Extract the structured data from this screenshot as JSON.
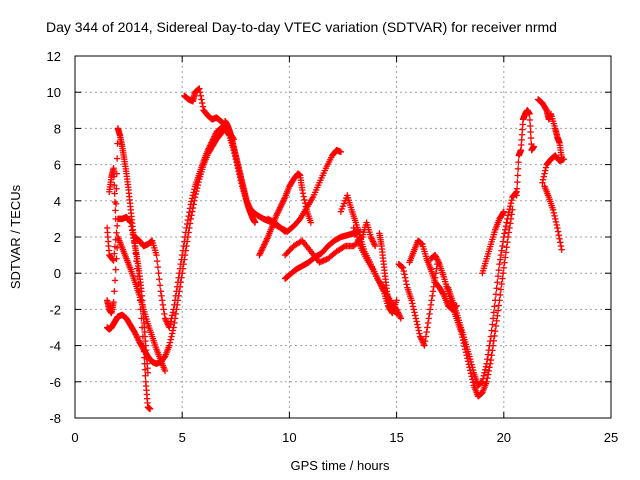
{
  "chart_data": {
    "type": "scatter",
    "title": "Day 344 of 2014, Sidereal Day-to-day VTEC variation (SDTVAR) for receiver nrmd",
    "xlabel": "GPS time / hours",
    "ylabel": "SDTVAR / TECUs",
    "xlim": [
      0,
      25
    ],
    "ylim": [
      -8,
      12
    ],
    "xticks": [
      0,
      5,
      10,
      15,
      20,
      25
    ],
    "yticks": [
      -8,
      -6,
      -4,
      -2,
      0,
      2,
      4,
      6,
      8,
      10,
      12
    ],
    "grid": true,
    "marker": "plus",
    "colors": {
      "series": "#ff0000",
      "grid": "#a0a0a0",
      "axis": "#000000"
    },
    "series": [
      {
        "x": [
          1.5,
          1.6,
          1.7,
          1.8,
          1.9,
          2.0,
          2.2,
          2.4,
          2.6,
          2.8,
          3.0,
          3.2,
          3.4,
          3.6,
          3.8,
          4.0,
          4.2,
          4.4,
          4.6,
          4.8,
          5.0,
          5.2,
          5.4,
          5.6,
          5.8,
          6.0,
          6.2,
          6.4,
          6.6,
          6.8,
          7.0,
          7.2,
          7.4,
          7.6,
          7.8,
          8.0,
          8.2,
          8.5,
          8.8,
          9.0,
          9.3,
          9.6,
          9.8
        ],
        "y": [
          -3.0,
          -3.1,
          -3.0,
          -2.8,
          -2.6,
          -2.4,
          -2.3,
          -2.5,
          -2.9,
          -3.3,
          -3.8,
          -4.2,
          -4.6,
          -4.9,
          -5.0,
          -4.9,
          -4.6,
          -4.0,
          -3.0,
          -1.5,
          0.0,
          1.5,
          3.0,
          4.2,
          5.2,
          6.0,
          6.6,
          7.0,
          7.4,
          7.7,
          8.0,
          7.6,
          6.8,
          5.8,
          4.8,
          4.0,
          3.5,
          3.2,
          3.0,
          2.9,
          2.7,
          2.5,
          2.3
        ]
      },
      {
        "x": [
          1.6,
          1.7,
          1.8,
          1.9,
          2.0,
          2.1,
          2.2,
          2.3,
          2.4,
          2.5,
          2.6,
          2.7,
          2.8,
          2.9,
          3.0,
          3.1,
          3.2,
          3.3,
          3.4
        ],
        "y": [
          4.5,
          5.3,
          5.8,
          3.0,
          8.0,
          7.6,
          7.0,
          6.3,
          5.5,
          4.6,
          3.5,
          2.4,
          1.5,
          0.8,
          0.0,
          -1.0,
          -2.5,
          -4.0,
          -5.5
        ]
      },
      {
        "x": [
          1.5,
          1.6,
          1.8,
          2.0,
          2.2,
          2.4,
          2.6,
          2.8,
          3.0,
          3.2,
          3.3,
          3.4,
          3.5
        ],
        "y": [
          2.5,
          1.0,
          0.7,
          3.0,
          3.0,
          3.1,
          2.8,
          1.5,
          -1.0,
          -4.0,
          -6.0,
          -7.4,
          -7.5
        ]
      },
      {
        "x": [
          1.5,
          1.6,
          1.7,
          1.8,
          2.0,
          2.2,
          2.4,
          2.6,
          2.8,
          3.0,
          3.2,
          3.4,
          3.6,
          3.8,
          4.0,
          4.2
        ],
        "y": [
          -1.5,
          -2.0,
          -2.2,
          -1.6,
          2.0,
          1.4,
          0.8,
          0.2,
          -0.5,
          -1.2,
          -2.0,
          -2.8,
          -3.5,
          -4.2,
          -4.8,
          -5.4
        ]
      },
      {
        "x": [
          2.8,
          3.0,
          3.2,
          3.4,
          3.6,
          3.8,
          4.0,
          4.2,
          4.4,
          4.6,
          4.8,
          5.0,
          5.2,
          5.4,
          5.6,
          5.8,
          6.0,
          6.2,
          6.4,
          6.6,
          6.8,
          7.0
        ],
        "y": [
          2.0,
          1.8,
          1.5,
          1.6,
          1.8,
          1.0,
          -1.0,
          -2.5,
          -3.0,
          -2.0,
          -0.5,
          1.0,
          2.5,
          3.8,
          4.8,
          5.5,
          6.2,
          6.8,
          7.3,
          7.8,
          8.0,
          8.2
        ]
      },
      {
        "x": [
          5.1,
          5.3,
          5.5,
          5.6,
          5.8,
          6.0,
          6.2,
          6.4,
          6.6,
          6.8,
          7.0,
          7.2,
          7.4
        ],
        "y": [
          9.8,
          9.6,
          9.5,
          10.0,
          10.2,
          9.0,
          8.7,
          8.5,
          8.6,
          8.4,
          8.2,
          7.8,
          7.4
        ]
      },
      {
        "x": [
          7.0,
          7.1,
          7.2,
          7.3,
          7.4,
          7.5,
          7.6,
          7.7,
          7.8,
          7.9,
          8.0,
          8.1,
          8.2,
          8.3,
          8.4
        ],
        "y": [
          8.4,
          8.2,
          7.9,
          7.5,
          7.0,
          6.5,
          6.0,
          5.5,
          5.0,
          4.5,
          4.0,
          3.6,
          3.3,
          3.0,
          2.8
        ]
      },
      {
        "x": [
          8.6,
          8.8,
          9.0,
          9.2,
          9.4,
          9.6,
          9.8,
          10.0,
          10.2,
          10.4,
          10.5,
          10.6,
          10.8,
          11.0
        ],
        "y": [
          1.0,
          1.5,
          2.0,
          2.6,
          3.2,
          3.7,
          4.2,
          4.8,
          5.2,
          5.5,
          5.4,
          4.6,
          3.5,
          2.8
        ]
      },
      {
        "x": [
          9.0,
          9.3,
          9.6,
          9.9,
          10.2,
          10.5,
          10.8,
          11.1,
          11.4,
          11.7,
          12.0,
          12.2,
          12.4
        ],
        "y": [
          3.0,
          2.8,
          2.5,
          2.3,
          2.6,
          3.0,
          3.6,
          4.2,
          5.0,
          5.8,
          6.5,
          6.8,
          6.7
        ]
      },
      {
        "x": [
          9.8,
          10.2,
          10.6,
          11.0,
          11.4,
          11.8,
          12.2,
          12.6,
          13.0,
          13.4,
          13.6,
          13.8,
          14.0
        ],
        "y": [
          1.0,
          1.5,
          1.8,
          1.2,
          0.6,
          0.8,
          1.2,
          1.5,
          1.5,
          2.0,
          2.8,
          2.0,
          1.5
        ]
      },
      {
        "x": [
          9.8,
          10.0,
          10.3,
          10.6,
          10.9,
          11.2,
          11.5,
          11.8,
          12.1,
          12.4,
          12.7,
          13.0,
          13.3
        ],
        "y": [
          -0.3,
          -0.1,
          0.2,
          0.4,
          0.6,
          0.9,
          1.1,
          1.5,
          1.8,
          2.0,
          2.1,
          2.2,
          2.3
        ]
      },
      {
        "x": [
          12.4,
          12.7,
          12.9,
          13.1,
          13.3,
          13.5,
          13.8,
          14.1,
          14.4,
          14.7,
          15.0,
          15.2
        ],
        "y": [
          3.4,
          4.3,
          3.5,
          2.8,
          2.0,
          1.2,
          0.5,
          -0.3,
          -0.8,
          -1.5,
          -2.0,
          -2.5
        ]
      },
      {
        "x": [
          13.0,
          13.3,
          13.6,
          13.9,
          14.2,
          14.4,
          14.6,
          14.8,
          15.0
        ],
        "y": [
          2.5,
          1.5,
          0.8,
          0.2,
          -0.5,
          -1.0,
          -1.8,
          -2.2,
          -1.5
        ]
      },
      {
        "x": [
          14.2,
          14.3,
          14.4,
          14.5,
          14.6,
          14.8,
          15.0
        ],
        "y": [
          2.2,
          1.5,
          0.5,
          -0.5,
          -1.5,
          -2.0,
          -2.2
        ]
      },
      {
        "x": [
          15.1,
          15.3,
          15.5,
          15.7,
          15.9,
          16.1,
          16.3,
          16.5,
          16.7,
          16.9
        ],
        "y": [
          0.5,
          0.3,
          -0.8,
          -1.5,
          -2.5,
          -3.5,
          -4.0,
          -2.5,
          -1.0,
          0.5
        ]
      },
      {
        "x": [
          15.6,
          15.8,
          16.0,
          16.2,
          16.4,
          16.6,
          16.8,
          17.0,
          17.2,
          17.4,
          17.6,
          17.8
        ],
        "y": [
          0.6,
          1.2,
          1.8,
          1.6,
          0.8,
          0.2,
          -0.5,
          -0.8,
          -1.2,
          -1.8,
          -2.0,
          -1.8
        ]
      },
      {
        "x": [
          16.6,
          16.8,
          17.0,
          17.2,
          17.4,
          17.6,
          17.8,
          18.0,
          18.2,
          18.4,
          18.6,
          18.8,
          19.0,
          19.2,
          19.4,
          19.6,
          19.8,
          20.0,
          20.2,
          20.4
        ],
        "y": [
          0.8,
          1.0,
          0.5,
          -0.2,
          -1.0,
          -1.8,
          -2.5,
          -3.2,
          -4.2,
          -5.2,
          -6.2,
          -6.8,
          -6.6,
          -6.0,
          -4.8,
          -3.2,
          -1.5,
          0.3,
          2.0,
          3.5
        ]
      },
      {
        "x": [
          17.4,
          17.6,
          17.8,
          18.0,
          18.2,
          18.4,
          18.6,
          18.8,
          19.0,
          19.2,
          19.4,
          19.6,
          19.8,
          20.0,
          20.2,
          20.4,
          20.6
        ],
        "y": [
          -0.8,
          -1.5,
          -2.2,
          -3.0,
          -3.8,
          -4.6,
          -5.5,
          -6.2,
          -6.0,
          -5.0,
          -3.5,
          -1.5,
          0.5,
          2.0,
          3.2,
          4.2,
          4.5
        ]
      },
      {
        "x": [
          19.0,
          19.2,
          19.4,
          19.6,
          19.8,
          20.0
        ],
        "y": [
          0.0,
          0.8,
          1.6,
          2.4,
          3.0,
          3.4
        ]
      },
      {
        "x": [
          20.6,
          20.7,
          20.8,
          20.9,
          21.0,
          21.1,
          21.2,
          21.3,
          21.4
        ],
        "y": [
          4.3,
          6.5,
          6.8,
          8.5,
          8.8,
          9.0,
          8.8,
          6.8,
          7.0
        ]
      },
      {
        "x": [
          21.6,
          21.8,
          22.0,
          22.1,
          22.2,
          22.4,
          22.5,
          22.6,
          22.7
        ],
        "y": [
          9.6,
          9.4,
          9.0,
          8.5,
          8.8,
          8.0,
          7.5,
          7.2,
          6.4
        ]
      },
      {
        "x": [
          21.8,
          22.0,
          22.2,
          22.4,
          22.6,
          22.8
        ],
        "y": [
          5.0,
          6.0,
          6.3,
          6.5,
          6.2,
          6.3
        ]
      },
      {
        "x": [
          21.9,
          22.1,
          22.3,
          22.5,
          22.7
        ],
        "y": [
          4.8,
          4.2,
          3.5,
          2.5,
          1.3
        ]
      }
    ]
  }
}
